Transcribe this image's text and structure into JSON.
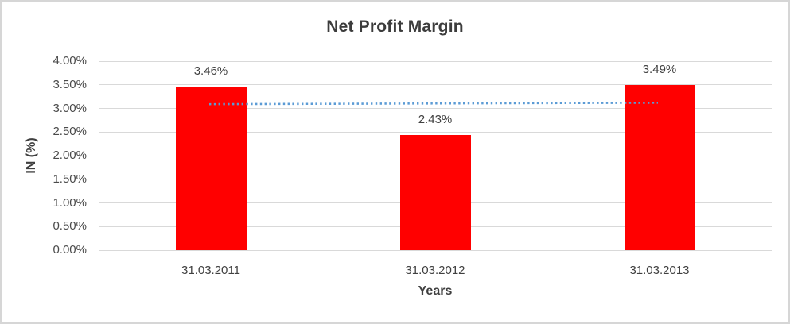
{
  "chart": {
    "title": "Net Profit Margin",
    "y_axis_title": "IN (%)",
    "x_axis_title": "Years",
    "colors": {
      "bar": "#FF0000",
      "trendline": "#5B9BD5",
      "gridline": "#D9D9D9",
      "title_text": "#3C3C3C",
      "label_text": "#404040",
      "frame_border": "#D6D6D6",
      "background": "#FFFFFF"
    }
  },
  "chart_data": {
    "type": "bar",
    "title": "Net Profit Margin",
    "xlabel": "Years",
    "ylabel": "IN (%)",
    "categories": [
      "31.03.2011",
      "31.03.2012",
      "31.03.2013"
    ],
    "values": [
      3.46,
      2.43,
      3.49
    ],
    "data_labels": [
      "3.46%",
      "2.43%",
      "3.49%"
    ],
    "y_ticks": [
      "0.00%",
      "0.50%",
      "1.00%",
      "1.50%",
      "2.00%",
      "2.50%",
      "3.00%",
      "3.50%",
      "4.00%"
    ],
    "y_tick_values": [
      0.0,
      0.5,
      1.0,
      1.5,
      2.0,
      2.5,
      3.0,
      3.5,
      4.0
    ],
    "ylim": [
      0,
      4
    ],
    "grid": true,
    "legend": "none",
    "trendline": {
      "style": "dotted",
      "color": "#5B9BD5",
      "start_value": 3.09,
      "end_value": 3.12,
      "start_category_index": 0,
      "end_category_index": 2
    }
  }
}
